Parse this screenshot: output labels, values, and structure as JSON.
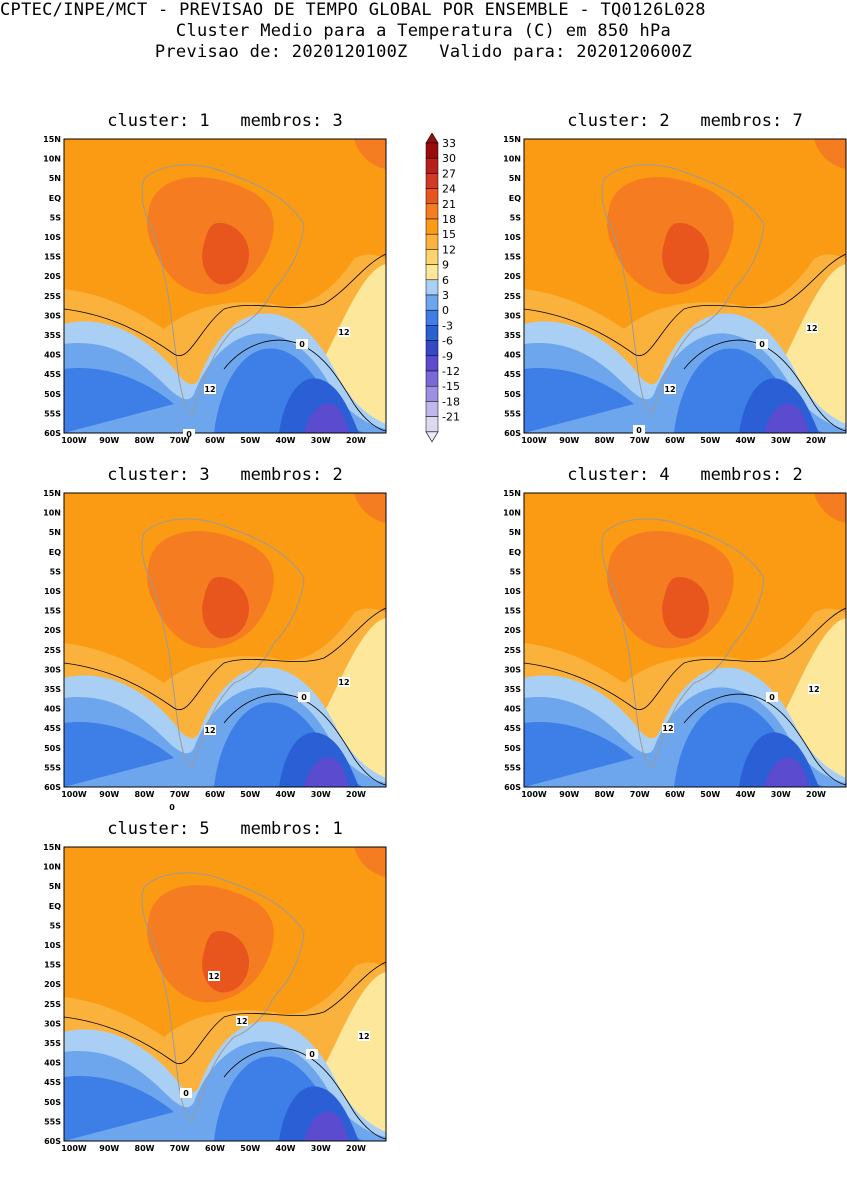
{
  "header": {
    "line1": "CPTEC/INPE/MCT - PREVISAO DE TEMPO GLOBAL POR ENSEMBLE - TQ0126L028",
    "line2": "Cluster Medio para a Temperatura (C) em 850 hPa",
    "line3": "Previsao de: 2020120100Z   Valido para: 2020120600Z"
  },
  "axes": {
    "lat_labels": [
      "15N",
      "10N",
      "5N",
      "EQ",
      "5S",
      "10S",
      "15S",
      "20S",
      "25S",
      "30S",
      "35S",
      "40S",
      "45S",
      "50S",
      "55S",
      "60S"
    ],
    "lon_labels": [
      "100W",
      "90W",
      "80W",
      "70W",
      "60W",
      "50W",
      "40W",
      "30W",
      "20W"
    ]
  },
  "panels": [
    {
      "title": "cluster: 1   membros: 3",
      "contours": [
        "12",
        "0",
        "12",
        "0"
      ]
    },
    {
      "title": "cluster: 2   membros: 7",
      "contours": [
        "12",
        "0",
        "12",
        "0"
      ]
    },
    {
      "title": "cluster: 3   membros: 2",
      "contours": [
        "12",
        "0",
        "12",
        "0"
      ]
    },
    {
      "title": "cluster: 4   membros: 2",
      "contours": [
        "12",
        "0",
        "12"
      ]
    },
    {
      "title": "cluster: 5   membros: 1",
      "contours": [
        "12",
        "12",
        "0",
        "12",
        "0"
      ]
    }
  ],
  "colorbar": {
    "labels": [
      "33",
      "30",
      "27",
      "24",
      "21",
      "18",
      "15",
      "12",
      "9",
      "6",
      "3",
      "0",
      "-3",
      "-6",
      "-9",
      "-12",
      "-15",
      "-18",
      "-21"
    ],
    "colors": [
      "#9a0d0d",
      "#b81e1e",
      "#d23a25",
      "#e8561e",
      "#f57c20",
      "#fb9a13",
      "#fbb23c",
      "#fdd46e",
      "#fde79a",
      "#a9cff5",
      "#6ea6ee",
      "#3d7fe6",
      "#2a5fd6",
      "#3448c8",
      "#5a4bcf",
      "#7a6ad9",
      "#9d90e2",
      "#c0b7ec",
      "#ddd8f4"
    ]
  }
}
